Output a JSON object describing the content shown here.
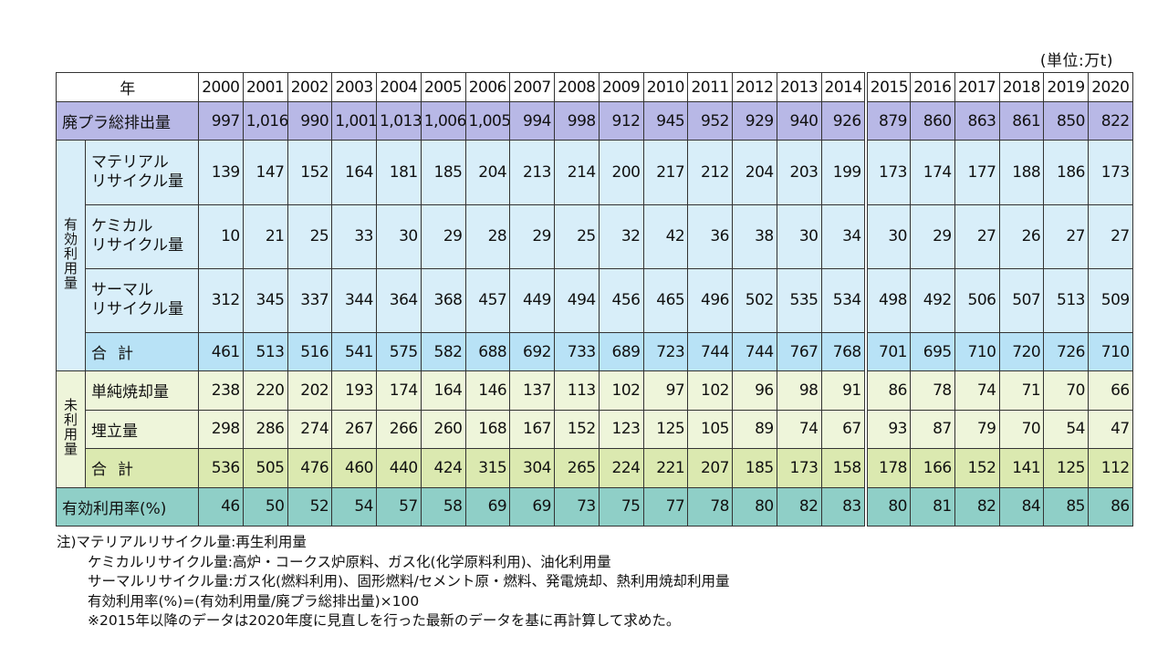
{
  "unit_label": "(単位:万t)",
  "header": {
    "year_label": "年",
    "years": [
      "2000",
      "2001",
      "2002",
      "2003",
      "2004",
      "2005",
      "2006",
      "2007",
      "2008",
      "2009",
      "2010",
      "2011",
      "2012",
      "2013",
      "2014",
      "2015",
      "2016",
      "2017",
      "2018",
      "2019",
      "2020"
    ]
  },
  "rows": {
    "total_waste": {
      "label": "廃プラ総排出量",
      "values": [
        "997",
        "1,016",
        "990",
        "1,001",
        "1,013",
        "1,006",
        "1,005",
        "994",
        "998",
        "912",
        "945",
        "952",
        "929",
        "940",
        "926",
        "879",
        "860",
        "863",
        "861",
        "850",
        "822"
      ]
    },
    "effective_group_label": "有効利用量",
    "material": {
      "label_line1": "マテリアル",
      "label_line2": "リサイクル量",
      "values": [
        "139",
        "147",
        "152",
        "164",
        "181",
        "185",
        "204",
        "213",
        "214",
        "200",
        "217",
        "212",
        "204",
        "203",
        "199",
        "173",
        "174",
        "177",
        "188",
        "186",
        "173"
      ]
    },
    "chemical": {
      "label_line1": "ケミカル",
      "label_line2": "リサイクル量",
      "values": [
        "10",
        "21",
        "25",
        "33",
        "30",
        "29",
        "28",
        "29",
        "25",
        "32",
        "42",
        "36",
        "38",
        "30",
        "34",
        "30",
        "29",
        "27",
        "26",
        "27",
        "27"
      ]
    },
    "thermal": {
      "label_line1": "サーマル",
      "label_line2": "リサイクル量",
      "values": [
        "312",
        "345",
        "337",
        "344",
        "364",
        "368",
        "457",
        "449",
        "494",
        "456",
        "465",
        "496",
        "502",
        "535",
        "534",
        "498",
        "492",
        "506",
        "507",
        "513",
        "509"
      ]
    },
    "effective_total": {
      "label": "合計",
      "values": [
        "461",
        "513",
        "516",
        "541",
        "575",
        "582",
        "688",
        "692",
        "733",
        "689",
        "723",
        "744",
        "744",
        "767",
        "768",
        "701",
        "695",
        "710",
        "720",
        "726",
        "710"
      ]
    },
    "unused_group_label": "未利用量",
    "incineration": {
      "label": "単純焼却量",
      "values": [
        "238",
        "220",
        "202",
        "193",
        "174",
        "164",
        "146",
        "137",
        "113",
        "102",
        "97",
        "102",
        "96",
        "98",
        "91",
        "86",
        "78",
        "74",
        "71",
        "70",
        "66"
      ]
    },
    "landfill": {
      "label": "埋立量",
      "values": [
        "298",
        "286",
        "274",
        "267",
        "266",
        "260",
        "168",
        "167",
        "152",
        "123",
        "125",
        "105",
        "89",
        "74",
        "67",
        "93",
        "87",
        "79",
        "70",
        "54",
        "47"
      ]
    },
    "unused_total": {
      "label": "合計",
      "values": [
        "536",
        "505",
        "476",
        "460",
        "440",
        "424",
        "315",
        "304",
        "265",
        "224",
        "221",
        "207",
        "185",
        "173",
        "158",
        "178",
        "166",
        "152",
        "141",
        "125",
        "112"
      ]
    },
    "rate": {
      "label": "有効利用率(%)",
      "values": [
        "46",
        "50",
        "52",
        "54",
        "57",
        "58",
        "69",
        "69",
        "73",
        "75",
        "77",
        "78",
        "80",
        "82",
        "83",
        "80",
        "81",
        "82",
        "84",
        "85",
        "86"
      ]
    }
  },
  "notes": {
    "line1": "注)マテリアルリサイクル量:再生利用量",
    "line2": "ケミカルリサイクル量:高炉・コークス炉原料、ガス化(化学原料利用)、油化利用量",
    "line3": "サーマルリサイクル量:ガス化(燃料利用)、固形燃料/セメント原・燃料、発電焼却、熱利用焼却利用量",
    "line4": "有効利用率(%)=(有効利用量/廃プラ総排出量)×100",
    "line5": "※2015年以降のデータは2020年度に見直しを行った最新のデータを基に再計算して求めた。"
  },
  "colors": {
    "total_row": "#b8b8e6",
    "effective_rows": "#d8eef9",
    "effective_total_row": "#b8e2f6",
    "unused_rows": "#eef5da",
    "unused_total_row": "#dbe9b0",
    "rate_row": "#8fcfc7"
  }
}
